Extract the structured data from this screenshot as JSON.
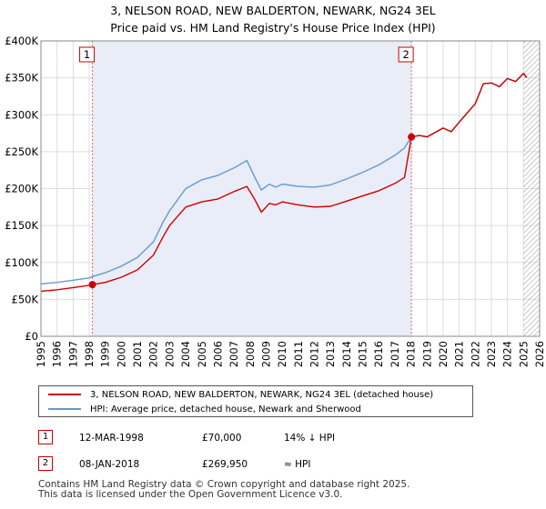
{
  "title_line1": "3, NELSON ROAD, NEW BALDERTON, NEWARK, NG24 3EL",
  "title_line2": "Price paid vs. HM Land Registry's House Price Index (HPI)",
  "chart_data": {
    "type": "line",
    "xlim": [
      1995,
      2026
    ],
    "ylim": [
      0,
      400000
    ],
    "x_ticks": [
      1995,
      1996,
      1997,
      1998,
      1999,
      2000,
      2001,
      2002,
      2003,
      2004,
      2005,
      2006,
      2007,
      2008,
      2009,
      2010,
      2011,
      2012,
      2013,
      2014,
      2015,
      2016,
      2017,
      2018,
      2019,
      2020,
      2021,
      2022,
      2023,
      2024,
      2025,
      2026
    ],
    "y_ticks": [
      0,
      50000,
      100000,
      150000,
      200000,
      250000,
      300000,
      350000,
      400000
    ],
    "y_tick_labels": [
      "£0",
      "£50K",
      "£100K",
      "£150K",
      "£200K",
      "£250K",
      "£300K",
      "£350K",
      "£400K"
    ],
    "grid": true,
    "shaded_region": [
      1998.2,
      2018.03
    ],
    "future_hatch_from": 2025.0,
    "series": [
      {
        "name": "3, NELSON ROAD, NEW BALDERTON, NEWARK, NG24 3EL (detached house)",
        "color": "#cc0000",
        "x": [
          1995.0,
          1996.0,
          1997.0,
          1998.0,
          1998.2,
          1999.0,
          2000.0,
          2001.0,
          2002.0,
          2002.6,
          2003.0,
          2004.0,
          2005.0,
          2006.0,
          2007.0,
          2007.8,
          2008.3,
          2008.7,
          2009.2,
          2009.6,
          2010.0,
          2011.0,
          2012.0,
          2013.0,
          2014.0,
          2015.0,
          2016.0,
          2017.0,
          2017.6,
          2018.03,
          2018.5,
          2019.0,
          2020.0,
          2020.5,
          2021.0,
          2022.0,
          2022.5,
          2023.0,
          2023.5,
          2024.0,
          2024.5,
          2025.0,
          2025.2
        ],
        "y": [
          61000,
          63000,
          66000,
          69000,
          70000,
          73000,
          80000,
          90000,
          110000,
          135000,
          150000,
          175000,
          182000,
          186000,
          196000,
          203000,
          185000,
          168000,
          180000,
          178000,
          182000,
          178000,
          175000,
          176000,
          183000,
          190000,
          197000,
          207000,
          215000,
          269950,
          272000,
          270000,
          282000,
          277000,
          290000,
          315000,
          342000,
          343000,
          338000,
          349000,
          345000,
          356000,
          350000
        ]
      },
      {
        "name": "HPI: Average price, detached house, Newark and Sherwood",
        "color": "#6699cc",
        "x": [
          1995.0,
          1996.0,
          1997.0,
          1998.0,
          1998.2,
          1999.0,
          2000.0,
          2001.0,
          2002.0,
          2002.6,
          2003.0,
          2004.0,
          2005.0,
          2006.0,
          2007.0,
          2007.8,
          2008.3,
          2008.7,
          2009.2,
          2009.6,
          2010.0,
          2011.0,
          2012.0,
          2013.0,
          2014.0,
          2015.0,
          2016.0,
          2017.0,
          2017.6,
          2018.03,
          2018.5,
          2019.0,
          2020.0,
          2020.5,
          2021.0,
          2022.0,
          2022.5,
          2023.0,
          2023.5,
          2024.0,
          2024.5,
          2025.0,
          2025.2
        ],
        "y": [
          71000,
          73000,
          76000,
          79000,
          81000,
          86000,
          95000,
          107000,
          128000,
          155000,
          170000,
          200000,
          212000,
          218000,
          228000,
          238000,
          215000,
          198000,
          206000,
          202000,
          206000,
          203000,
          202000,
          205000,
          213000,
          222000,
          232000,
          245000,
          255000,
          269950,
          272000,
          270000,
          282000,
          277000,
          290000,
          315000,
          342000,
          343000,
          338000,
          349000,
          345000,
          356000,
          350000
        ]
      }
    ],
    "sale_markers": [
      {
        "label": "1",
        "x": 1998.2,
        "y": 70000
      },
      {
        "label": "2",
        "x": 2018.03,
        "y": 269950
      }
    ]
  },
  "legend": [
    {
      "label": "3, NELSON ROAD, NEW BALDERTON, NEWARK, NG24 3EL (detached house)",
      "color": "#cc0000"
    },
    {
      "label": "HPI: Average price, detached house, Newark and Sherwood",
      "color": "#6699cc"
    }
  ],
  "sales": [
    {
      "num": "1",
      "date": "12-MAR-1998",
      "price": "£70,000",
      "relation": "14% ↓ HPI"
    },
    {
      "num": "2",
      "date": "08-JAN-2018",
      "price": "£269,950",
      "relation": "≈ HPI"
    }
  ],
  "footer_line1": "Contains HM Land Registry data © Crown copyright and database right 2025.",
  "footer_line2": "This data is licensed under the Open Government Licence v3.0."
}
